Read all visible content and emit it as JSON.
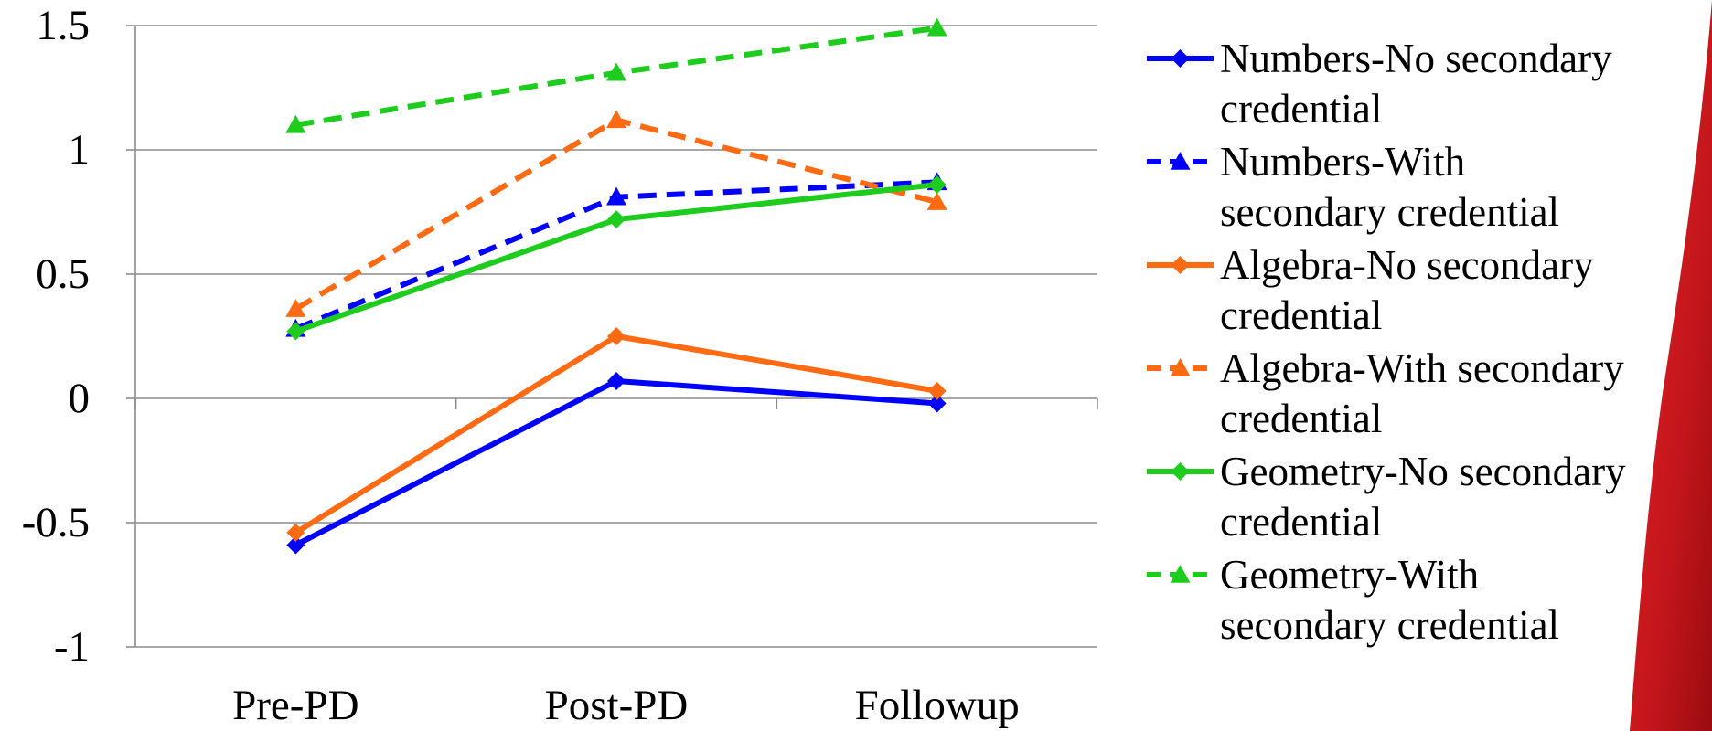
{
  "chart_data": {
    "type": "line",
    "title": "",
    "xlabel": "",
    "ylabel": "",
    "categories": [
      "Pre-PD",
      "Post-PD",
      "Followup"
    ],
    "ylim": [
      -1,
      1.5
    ],
    "yticks": [
      1.5,
      1,
      0.5,
      0,
      -0.5,
      -1
    ],
    "ytick_labels": [
      "1.5",
      "1",
      "0.5",
      "0",
      "-0.5",
      "-1"
    ],
    "grid": "horizontal",
    "legend_position": "right",
    "series": [
      {
        "name": "Numbers-No secondary credential",
        "legend_lines": [
          "Numbers-No secondary",
          "credential"
        ],
        "values": [
          -0.59,
          0.07,
          -0.02
        ],
        "color": "#0000ff",
        "dash": "solid",
        "marker": "diamond"
      },
      {
        "name": "Numbers-With secondary credential",
        "legend_lines": [
          "Numbers-With",
          "secondary credential"
        ],
        "values": [
          0.28,
          0.81,
          0.87
        ],
        "color": "#0000ff",
        "dash": "dashed",
        "marker": "triangle"
      },
      {
        "name": "Algebra-No secondary credential",
        "legend_lines": [
          "Algebra-No secondary",
          "credential"
        ],
        "values": [
          -0.54,
          0.25,
          0.03
        ],
        "color": "#ff6a13",
        "dash": "solid",
        "marker": "diamond"
      },
      {
        "name": "Algebra-With secondary credential",
        "legend_lines": [
          "Algebra-With secondary",
          "credential"
        ],
        "values": [
          0.36,
          1.12,
          0.79
        ],
        "color": "#ff6a13",
        "dash": "dashed",
        "marker": "triangle"
      },
      {
        "name": "Geometry-No secondary credential",
        "legend_lines": [
          "Geometry-No secondary",
          "credential"
        ],
        "values": [
          0.27,
          0.72,
          0.86
        ],
        "color": "#1ecc1e",
        "dash": "solid",
        "marker": "diamond"
      },
      {
        "name": "Geometry-With secondary credential",
        "legend_lines": [
          "Geometry-With",
          "secondary credential"
        ],
        "values": [
          1.1,
          1.31,
          1.49
        ],
        "color": "#1ecc1e",
        "dash": "dashed",
        "marker": "triangle"
      }
    ]
  }
}
